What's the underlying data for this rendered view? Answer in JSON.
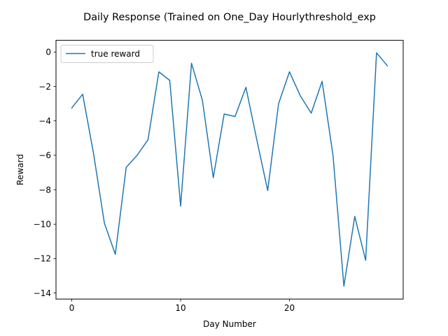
{
  "chart_data": {
    "type": "line",
    "title": "Daily Response (Trained on One_Day Hourlythreshold_exp",
    "xlabel": "Day Number",
    "ylabel": "Reward",
    "xlim": [
      -1.45,
      30.45
    ],
    "ylim": [
      -14.35,
      0.68
    ],
    "xticks": [
      0,
      10,
      20
    ],
    "yticks": [
      0,
      -2,
      -4,
      -6,
      -8,
      -10,
      -12,
      -14
    ],
    "grid": false,
    "legend_position": "upper-left",
    "series": [
      {
        "name": "true reward",
        "color": "#1f77b4",
        "x": [
          0,
          1,
          2,
          3,
          4,
          5,
          6,
          7,
          8,
          9,
          10,
          11,
          12,
          13,
          14,
          15,
          16,
          17,
          18,
          19,
          20,
          21,
          22,
          23,
          24,
          25,
          26,
          27,
          28,
          29
        ],
        "y": [
          -3.25,
          -2.45,
          -5.9,
          -9.95,
          -11.75,
          -6.7,
          -6.0,
          -5.1,
          -1.15,
          -1.65,
          -8.95,
          -0.65,
          -2.8,
          -7.3,
          -3.6,
          -3.75,
          -2.05,
          -5.1,
          -8.05,
          -3.0,
          -1.15,
          -2.55,
          -3.55,
          -1.7,
          -6.0,
          -13.6,
          -9.55,
          -12.1,
          -0.05,
          -0.8
        ]
      }
    ]
  }
}
